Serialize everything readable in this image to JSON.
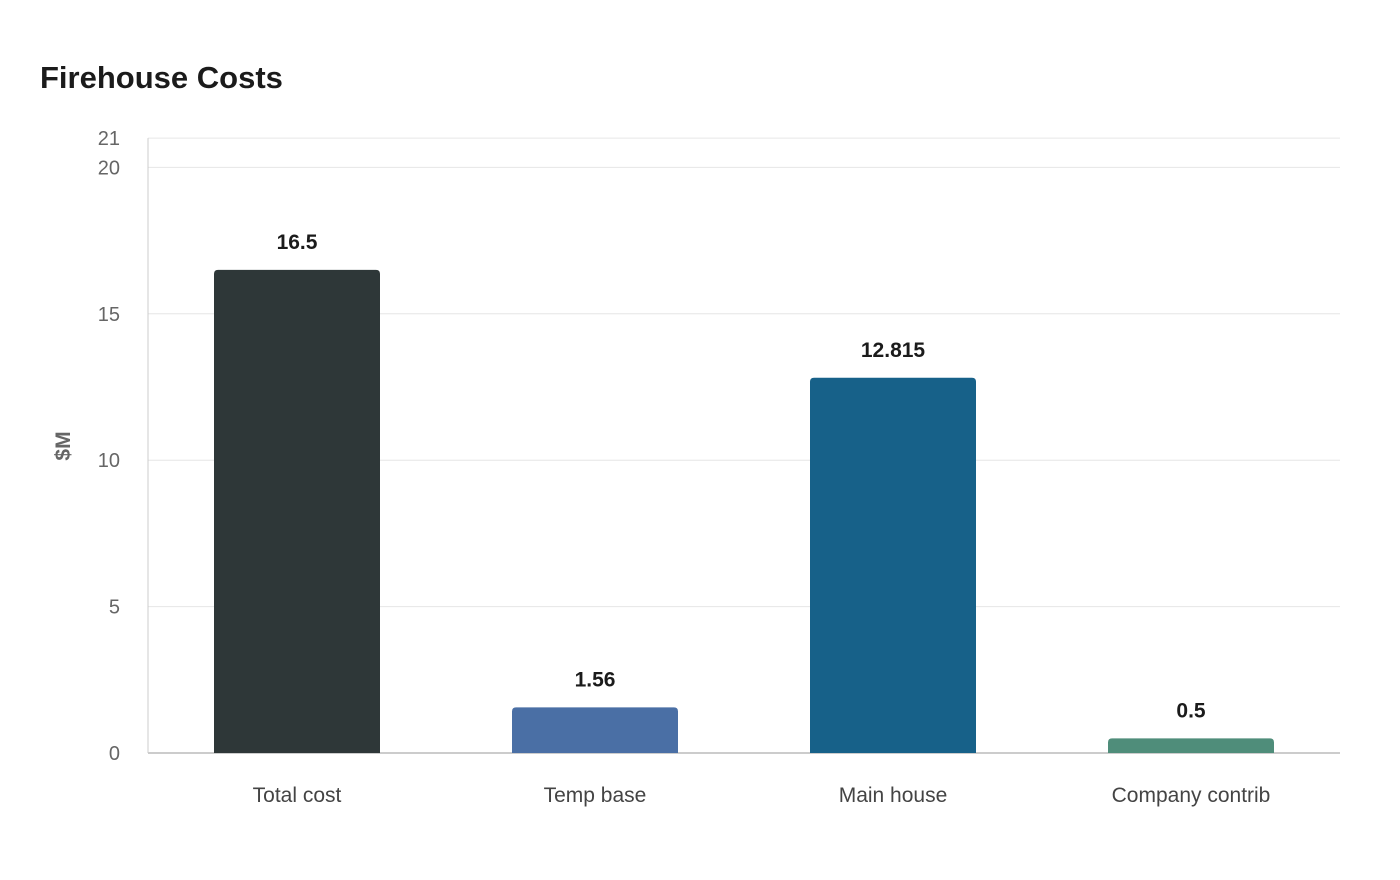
{
  "chart_data": {
    "type": "bar",
    "title": "Firehouse Costs",
    "xlabel": "",
    "ylabel": "$M",
    "categories": [
      "Total cost",
      "Temp base",
      "Main house",
      "Company contrib"
    ],
    "values": [
      16.5,
      1.56,
      12.815,
      0.5
    ],
    "value_labels": [
      "16.5",
      "1.56",
      "12.815",
      "0.5"
    ],
    "colors": [
      "#2e3738",
      "#4a6fa5",
      "#176189",
      "#4f8d7a"
    ],
    "ylim": [
      0,
      21
    ],
    "yticks": [
      0,
      5,
      10,
      15,
      20,
      21
    ],
    "grid": true,
    "legend": "none"
  }
}
